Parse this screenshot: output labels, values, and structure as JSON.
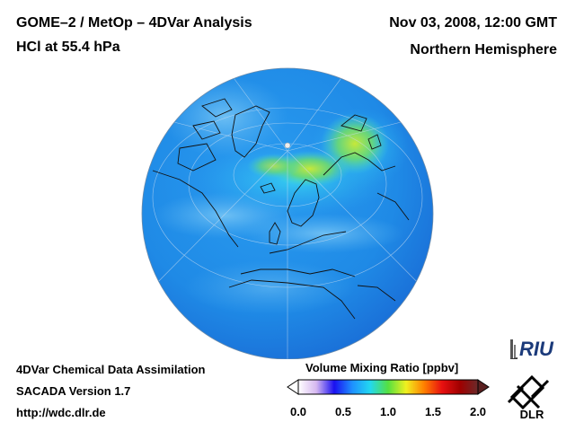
{
  "header": {
    "title": "GOME–2 / MetOp – 4DVar Analysis",
    "subtitle": "HCl at 55.4 hPa",
    "datetime": "Nov 03, 2008, 12:00 GMT",
    "region": "Northern Hemisphere"
  },
  "footer": {
    "line1": "4DVar Chemical Data Assimilation",
    "line2": "SACADA Version 1.7",
    "line3": "http://wdc.dlr.de"
  },
  "colorbar": {
    "title": "Volume Mixing Ratio [ppbv]",
    "range": [
      0.0,
      2.0
    ],
    "ticks": [
      "0.0",
      "0.5",
      "1.0",
      "1.5",
      "2.0"
    ],
    "tick_values": [
      0.0,
      0.5,
      1.0,
      1.5,
      2.0
    ],
    "colors": [
      "#ffffff",
      "#d6b8f0",
      "#1a10f0",
      "#1e90ff",
      "#22d8f0",
      "#55e040",
      "#f0f020",
      "#ff8000",
      "#e81010",
      "#a00000",
      "#6a2a2a"
    ]
  },
  "map": {
    "projection": "orthographic",
    "hemisphere": "Northern Hemisphere",
    "base_color": "#1f8fe8",
    "high_color": "#a8e83a"
  },
  "logos": {
    "riu": "RIU",
    "dlr": "DLR"
  }
}
